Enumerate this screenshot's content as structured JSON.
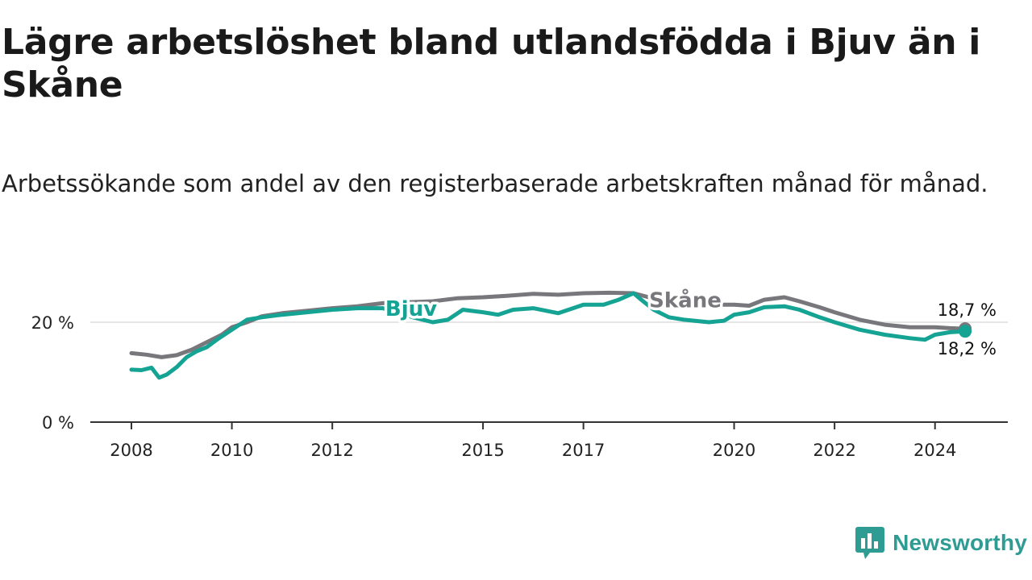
{
  "title": "Lägre arbetslöshet bland utlandsfödda i Bjuv än i Skåne",
  "subtitle": "Arbetssökande som andel av den registerbaserade arbetskraften månad för månad.",
  "brand": "Newsworthy",
  "colors": {
    "bjuv": "#15a394",
    "skane": "#78777c",
    "axis": "#333333",
    "grid": "#dddddd",
    "brand": "#2e9c93"
  },
  "chart_data": {
    "type": "line",
    "title": "Lägre arbetslöshet bland utlandsfödda i Bjuv än i Skåne",
    "xlabel": "",
    "ylabel": "",
    "xlim": [
      2008.0,
      2025.0
    ],
    "ylim": [
      0,
      30
    ],
    "grid": true,
    "x_ticks": [
      2008,
      2010,
      2012,
      2015,
      2017,
      2020,
      2022,
      2024
    ],
    "x_tick_labels": [
      "2008",
      "2010",
      "2012",
      "2015",
      "2017",
      "2020",
      "2022",
      "2024"
    ],
    "y_ticks": [
      0,
      20
    ],
    "y_tick_labels": [
      "0 %",
      "20 %"
    ],
    "series": [
      {
        "name": "Skåne",
        "label": "Skåne",
        "end_label": "18,7 %",
        "end_value": 18.7,
        "points": [
          [
            2008.0,
            13.8
          ],
          [
            2008.3,
            13.5
          ],
          [
            2008.6,
            13.0
          ],
          [
            2008.9,
            13.4
          ],
          [
            2009.2,
            14.5
          ],
          [
            2009.5,
            16.0
          ],
          [
            2009.8,
            17.5
          ],
          [
            2010.0,
            19.0
          ],
          [
            2010.3,
            20.0
          ],
          [
            2010.6,
            21.2
          ],
          [
            2011.0,
            21.8
          ],
          [
            2011.5,
            22.3
          ],
          [
            2012.0,
            22.8
          ],
          [
            2012.5,
            23.2
          ],
          [
            2013.0,
            23.8
          ],
          [
            2013.5,
            24.0
          ],
          [
            2014.0,
            24.2
          ],
          [
            2014.5,
            24.8
          ],
          [
            2015.0,
            25.0
          ],
          [
            2015.5,
            25.3
          ],
          [
            2016.0,
            25.7
          ],
          [
            2016.5,
            25.5
          ],
          [
            2017.0,
            25.8
          ],
          [
            2017.5,
            25.9
          ],
          [
            2018.0,
            25.8
          ],
          [
            2018.3,
            25.0
          ],
          [
            2018.7,
            24.5
          ],
          [
            2019.0,
            24.0
          ],
          [
            2019.5,
            23.5
          ],
          [
            2020.0,
            23.5
          ],
          [
            2020.3,
            23.3
          ],
          [
            2020.6,
            24.5
          ],
          [
            2021.0,
            25.0
          ],
          [
            2021.3,
            24.2
          ],
          [
            2021.7,
            23.0
          ],
          [
            2022.0,
            22.0
          ],
          [
            2022.5,
            20.5
          ],
          [
            2023.0,
            19.5
          ],
          [
            2023.5,
            19.0
          ],
          [
            2024.0,
            19.0
          ],
          [
            2024.3,
            18.8
          ],
          [
            2024.6,
            18.7
          ]
        ]
      },
      {
        "name": "Bjuv",
        "label": "Bjuv",
        "end_label": "18,2 %",
        "end_value": 18.2,
        "points": [
          [
            2008.0,
            10.5
          ],
          [
            2008.2,
            10.4
          ],
          [
            2008.4,
            10.9
          ],
          [
            2008.55,
            8.9
          ],
          [
            2008.7,
            9.5
          ],
          [
            2008.9,
            11.0
          ],
          [
            2009.1,
            13.0
          ],
          [
            2009.3,
            14.2
          ],
          [
            2009.5,
            15.0
          ],
          [
            2009.7,
            16.5
          ],
          [
            2010.0,
            18.5
          ],
          [
            2010.3,
            20.5
          ],
          [
            2010.6,
            21.0
          ],
          [
            2011.0,
            21.5
          ],
          [
            2011.5,
            22.0
          ],
          [
            2012.0,
            22.5
          ],
          [
            2012.5,
            22.8
          ],
          [
            2013.0,
            22.8
          ],
          [
            2013.3,
            22.0
          ],
          [
            2013.6,
            21.0
          ],
          [
            2014.0,
            20.0
          ],
          [
            2014.3,
            20.5
          ],
          [
            2014.6,
            22.5
          ],
          [
            2015.0,
            22.0
          ],
          [
            2015.3,
            21.5
          ],
          [
            2015.6,
            22.5
          ],
          [
            2016.0,
            22.8
          ],
          [
            2016.5,
            21.8
          ],
          [
            2017.0,
            23.5
          ],
          [
            2017.4,
            23.5
          ],
          [
            2017.7,
            24.5
          ],
          [
            2018.0,
            25.8
          ],
          [
            2018.15,
            24.5
          ],
          [
            2018.4,
            22.5
          ],
          [
            2018.7,
            21.0
          ],
          [
            2019.0,
            20.5
          ],
          [
            2019.5,
            20.0
          ],
          [
            2019.8,
            20.3
          ],
          [
            2020.0,
            21.5
          ],
          [
            2020.3,
            22.0
          ],
          [
            2020.6,
            23.0
          ],
          [
            2021.0,
            23.2
          ],
          [
            2021.3,
            22.5
          ],
          [
            2021.7,
            21.0
          ],
          [
            2022.0,
            20.0
          ],
          [
            2022.5,
            18.5
          ],
          [
            2023.0,
            17.5
          ],
          [
            2023.5,
            16.8
          ],
          [
            2023.8,
            16.5
          ],
          [
            2024.0,
            17.5
          ],
          [
            2024.3,
            18.0
          ],
          [
            2024.6,
            18.2
          ]
        ]
      }
    ]
  }
}
